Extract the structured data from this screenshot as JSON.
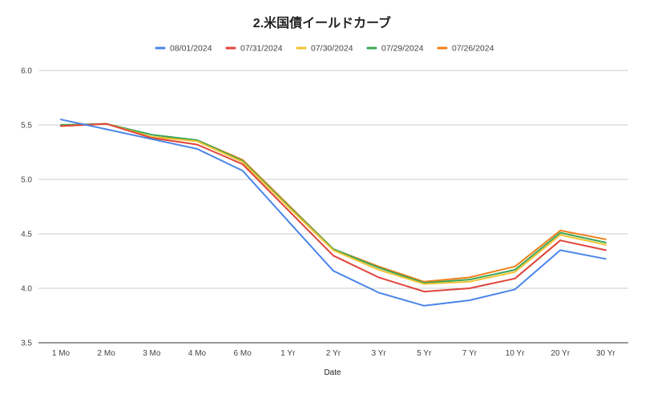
{
  "chart_data": {
    "type": "line",
    "title": "2.米国債イールドカーブ",
    "xlabel": "Date",
    "ylabel": "",
    "categories": [
      "1 Mo",
      "2 Mo",
      "3 Mo",
      "4 Mo",
      "6 Mo",
      "1 Yr",
      "2 Yr",
      "3 Yr",
      "5 Yr",
      "7 Yr",
      "10 Yr",
      "20 Yr",
      "30 Yr"
    ],
    "ylim": [
      3.5,
      6.0
    ],
    "yticks": [
      "3.5",
      "4.0",
      "4.5",
      "5.0",
      "5.5",
      "6.0"
    ],
    "grid": true,
    "legend_position": "top",
    "series": [
      {
        "name": "08/01/2024",
        "color": "#4a86e8",
        "values": [
          5.55,
          5.46,
          5.37,
          5.28,
          5.08,
          4.62,
          4.16,
          3.96,
          3.84,
          3.89,
          3.99,
          4.35,
          4.27
        ]
      },
      {
        "name": "07/31/2024",
        "color": "#e0443a",
        "values": [
          5.49,
          5.51,
          5.38,
          5.32,
          5.14,
          4.72,
          4.3,
          4.1,
          3.97,
          4.0,
          4.09,
          4.44,
          4.35
        ]
      },
      {
        "name": "07/30/2024",
        "color": "#f1c232",
        "values": [
          5.49,
          5.51,
          5.39,
          5.35,
          5.16,
          4.75,
          4.35,
          4.17,
          4.04,
          4.06,
          4.15,
          4.49,
          4.4
        ]
      },
      {
        "name": "07/29/2024",
        "color": "#3aa655",
        "values": [
          5.5,
          5.51,
          5.41,
          5.36,
          5.17,
          4.76,
          4.36,
          4.19,
          4.05,
          4.08,
          4.17,
          4.51,
          4.42
        ]
      },
      {
        "name": "07/26/2024",
        "color": "#f07f1a",
        "values": [
          5.49,
          5.51,
          5.39,
          5.36,
          5.18,
          4.77,
          4.36,
          4.2,
          4.06,
          4.1,
          4.2,
          4.53,
          4.45
        ]
      }
    ]
  }
}
